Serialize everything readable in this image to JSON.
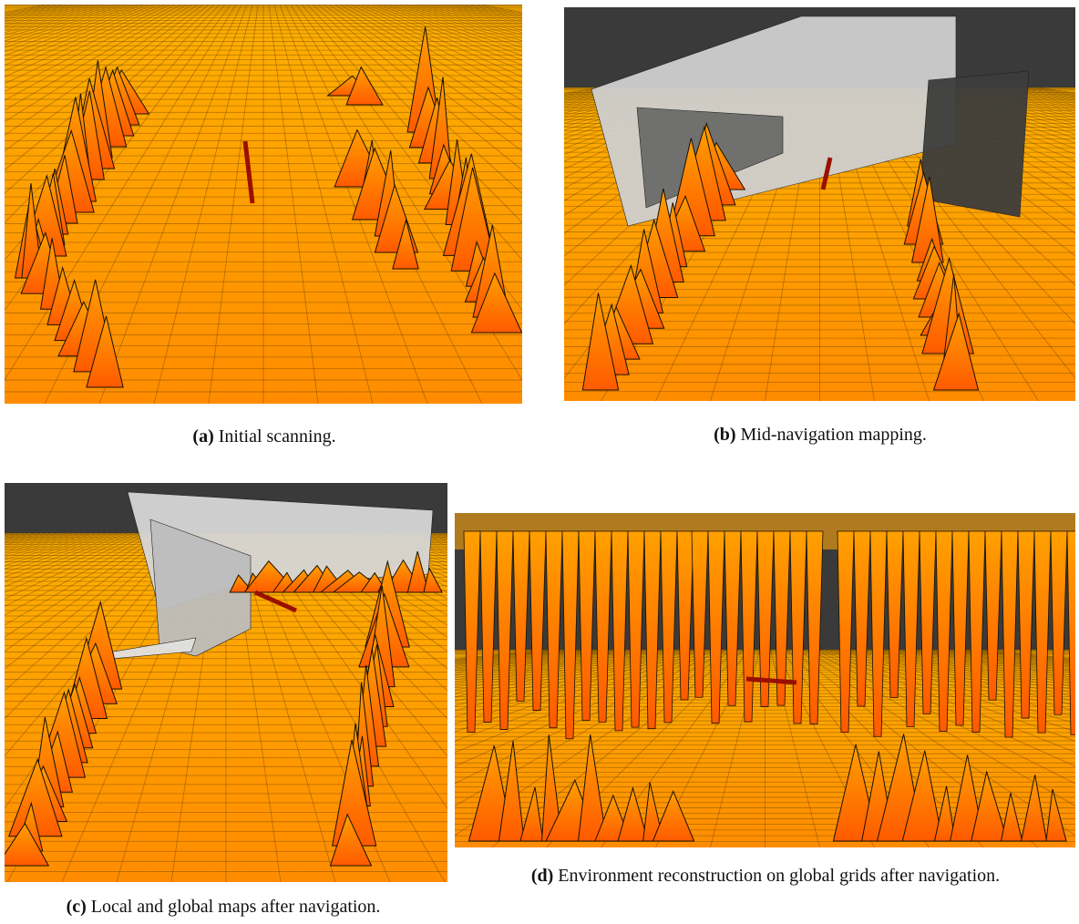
{
  "figure": {
    "panels": [
      {
        "label": "(a)",
        "caption": "Initial scanning."
      },
      {
        "label": "(b)",
        "caption": "Mid-navigation mapping."
      },
      {
        "label": "(c)",
        "caption": "Local and global maps after navigation."
      },
      {
        "label": "(d)",
        "caption": "Environment reconstruction on global grids after navigation."
      }
    ]
  }
}
